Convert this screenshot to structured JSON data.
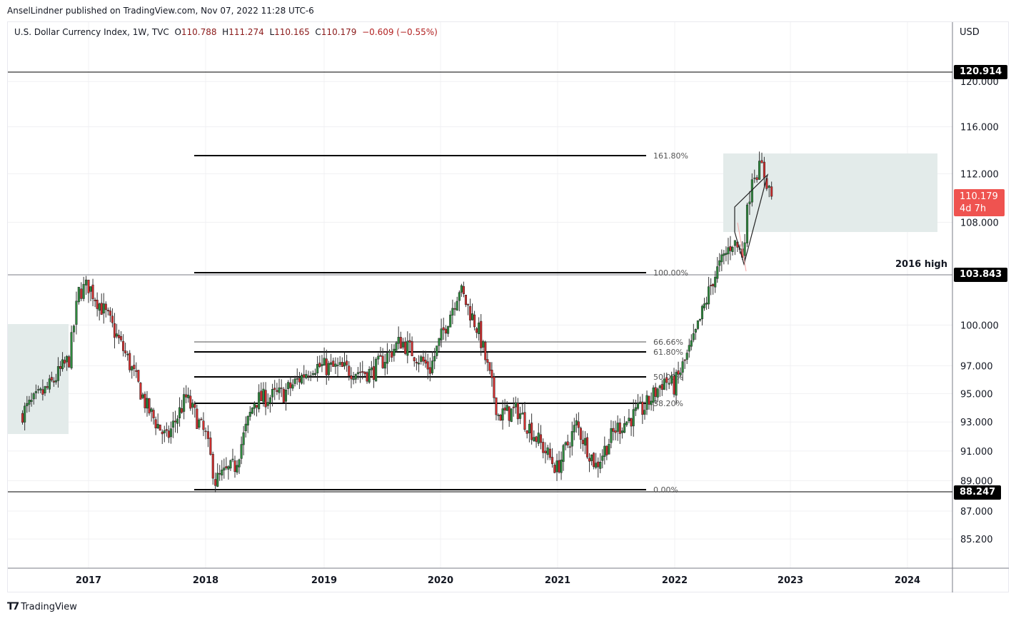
{
  "header": {
    "published_line": "AnselLindner published on TradingView.com, Nov 07, 2022 11:28 UTC-6"
  },
  "legend": {
    "symbol": "U.S. Dollar Currency Index, 1W, TVC",
    "open_label": "O",
    "open": "110.788",
    "high_label": "H",
    "high": "111.274",
    "low_label": "L",
    "low": "110.165",
    "close_label": "C",
    "close": "110.179",
    "change": "−0.609 (−0.55%)"
  },
  "price_axis": {
    "currency": "USD",
    "ticks": [
      "120.000",
      "116.000",
      "112.000",
      "108.000",
      "100.000",
      "97.000",
      "95.000",
      "93.000",
      "91.000",
      "89.000",
      "87.000",
      "85.200"
    ],
    "tags": {
      "top_line": "120.914",
      "high_2016": "103.843",
      "low_line": "88.247"
    },
    "last_price": "110.179",
    "countdown": "4d 7h"
  },
  "time_axis": {
    "labels": [
      "2017",
      "2018",
      "2019",
      "2020",
      "2021",
      "2022",
      "2023",
      "2024"
    ]
  },
  "annotations": {
    "high_2016_label": "2016 high"
  },
  "fib_levels": [
    {
      "label": "161.80%",
      "price": 113.8
    },
    {
      "label": "100.00%",
      "price": 103.9
    },
    {
      "label": "66.66%",
      "price": 98.7
    },
    {
      "label": "61.80%",
      "price": 97.9
    },
    {
      "label": "50.00%",
      "price": 96.1
    },
    {
      "label": "38.20%",
      "price": 94.3
    },
    {
      "label": "0.00%",
      "price": 88.4
    }
  ],
  "footer": {
    "brand": "TradingView"
  },
  "colors": {
    "up": "#2e8b3e",
    "down": "#d32f2f",
    "last_price": "#ef5350",
    "zone": "#e3ebea"
  },
  "chart_data": {
    "type": "candlestick",
    "title": "U.S. Dollar Currency Index, 1W, TVC",
    "xlabel": "",
    "ylabel": "USD",
    "scale": "log",
    "ylim": [
      84.0,
      124.0
    ],
    "x_range": [
      "2016-05",
      "2024-06"
    ],
    "grid": true,
    "horizontal_lines": [
      120.914,
      103.843,
      88.247
    ],
    "fib_retracement": {
      "0.00%": 88.4,
      "38.20%": 94.3,
      "50.00%": 96.1,
      "61.80%": 97.9,
      "66.66%": 98.7,
      "100.00%": 103.9,
      "161.80%": 113.8
    },
    "path_keypoints": [
      {
        "date": "2016-06",
        "close": 93.5
      },
      {
        "date": "2016-09",
        "close": 95.5
      },
      {
        "date": "2016-11",
        "close": 97.5
      },
      {
        "date": "2016-12",
        "close": 102.5
      },
      {
        "date": "2017-01",
        "close": 103.0
      },
      {
        "date": "2017-03",
        "close": 100.5
      },
      {
        "date": "2017-05",
        "close": 97.5
      },
      {
        "date": "2017-07",
        "close": 94.0
      },
      {
        "date": "2017-09",
        "close": 91.8
      },
      {
        "date": "2017-11",
        "close": 94.7
      },
      {
        "date": "2018-01",
        "close": 92.0
      },
      {
        "date": "2018-02",
        "close": 89.0
      },
      {
        "date": "2018-04",
        "close": 90.0
      },
      {
        "date": "2018-06",
        "close": 94.5
      },
      {
        "date": "2018-09",
        "close": 95.0
      },
      {
        "date": "2018-12",
        "close": 97.0
      },
      {
        "date": "2019-06",
        "close": 96.5
      },
      {
        "date": "2019-09",
        "close": 98.8
      },
      {
        "date": "2019-12",
        "close": 96.8
      },
      {
        "date": "2020-03",
        "close": 102.8
      },
      {
        "date": "2020-05",
        "close": 99.5
      },
      {
        "date": "2020-07",
        "close": 93.5
      },
      {
        "date": "2020-09",
        "close": 93.8
      },
      {
        "date": "2021-01",
        "close": 89.8
      },
      {
        "date": "2021-03",
        "close": 92.8
      },
      {
        "date": "2021-05",
        "close": 90.0
      },
      {
        "date": "2021-07",
        "close": 92.5
      },
      {
        "date": "2021-10",
        "close": 94.0
      },
      {
        "date": "2021-12",
        "close": 96.0
      },
      {
        "date": "2022-01",
        "close": 95.5
      },
      {
        "date": "2022-03",
        "close": 98.8
      },
      {
        "date": "2022-05",
        "close": 103.5
      },
      {
        "date": "2022-07",
        "close": 106.5
      },
      {
        "date": "2022-08",
        "close": 105.5
      },
      {
        "date": "2022-09",
        "close": 112.0
      },
      {
        "date": "2022-10",
        "close": 112.5
      },
      {
        "date": "2022-11",
        "close": 110.18
      }
    ],
    "last_ohlc": {
      "open": 110.788,
      "high": 111.274,
      "low": 110.165,
      "close": 110.179
    }
  }
}
